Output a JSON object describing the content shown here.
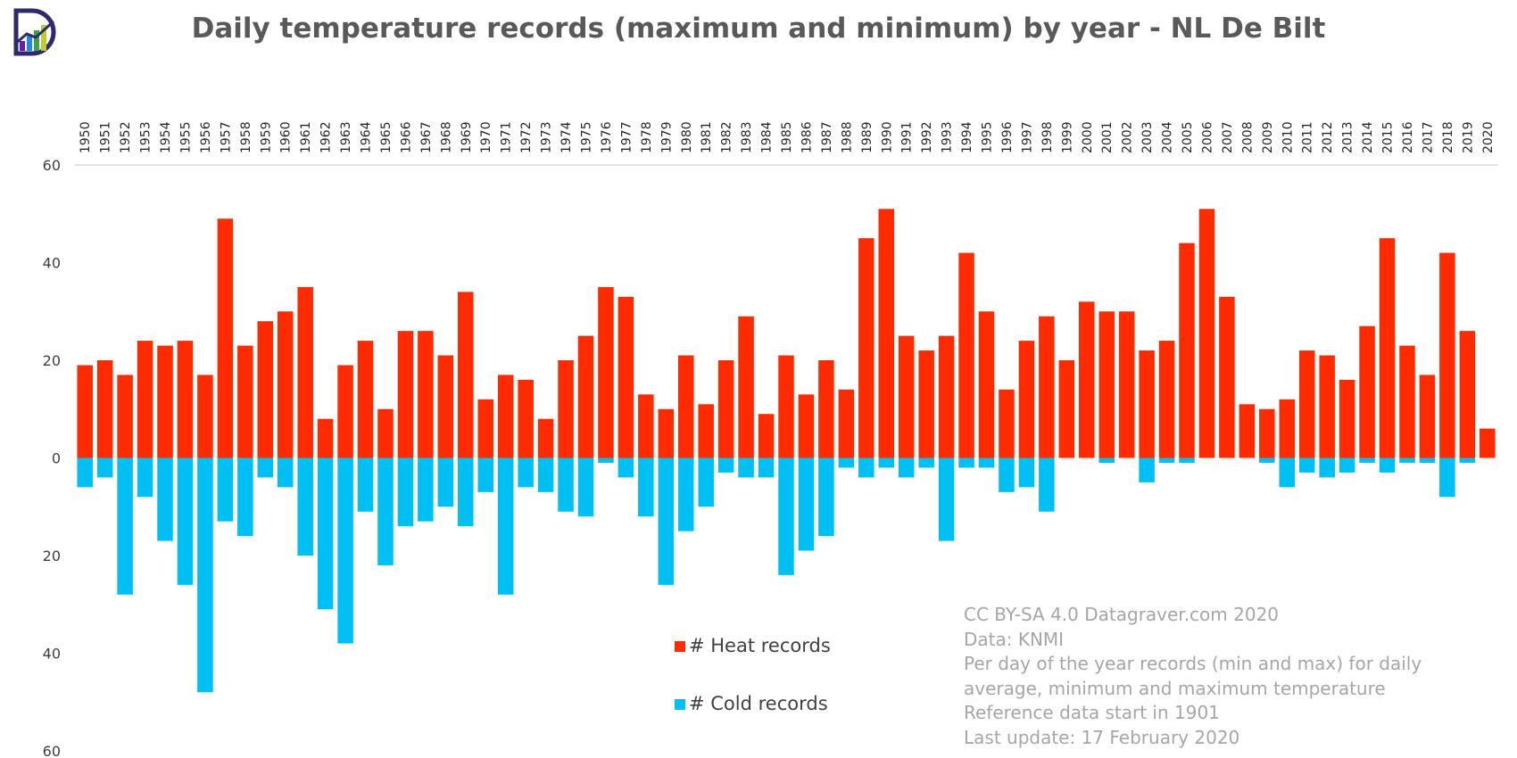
{
  "logo": {
    "icon": "datagraver-logo-icon"
  },
  "colors": {
    "heat": "#ff2b00",
    "cold": "#00bff2",
    "axis": "#d9d9d9",
    "title": "#595959",
    "note": "#a6a6a6"
  },
  "chart_data": {
    "type": "bar",
    "title": "Daily temperature records (maximum and minimum) by year - NL De Bilt",
    "xlabel": "",
    "ylabel": "",
    "x_axis_position": "top",
    "ylim": [
      -60,
      60
    ],
    "y_ticks": [
      60,
      40,
      20,
      0,
      -20,
      -40,
      -60
    ],
    "y_tick_labels": [
      "60",
      "40",
      "20",
      "0",
      "20",
      "40",
      "60"
    ],
    "grid": false,
    "legend_position": "bottom-center",
    "categories": [
      "1950",
      "1951",
      "1952",
      "1953",
      "1954",
      "1955",
      "1956",
      "1957",
      "1958",
      "1959",
      "1960",
      "1961",
      "1962",
      "1963",
      "1964",
      "1965",
      "1966",
      "1967",
      "1968",
      "1969",
      "1970",
      "1971",
      "1972",
      "1973",
      "1974",
      "1975",
      "1976",
      "1977",
      "1978",
      "1979",
      "1980",
      "1981",
      "1982",
      "1983",
      "1984",
      "1985",
      "1986",
      "1987",
      "1988",
      "1989",
      "1990",
      "1991",
      "1992",
      "1993",
      "1994",
      "1995",
      "1996",
      "1997",
      "1998",
      "1999",
      "2000",
      "2001",
      "2002",
      "2003",
      "2004",
      "2005",
      "2006",
      "2007",
      "2008",
      "2009",
      "2010",
      "2011",
      "2012",
      "2013",
      "2014",
      "2015",
      "2016",
      "2017",
      "2018",
      "2019",
      "2020"
    ],
    "series": [
      {
        "name": "# Heat records",
        "color": "#ff2b00",
        "values": [
          19,
          20,
          17,
          24,
          23,
          24,
          17,
          49,
          23,
          28,
          30,
          35,
          8,
          19,
          24,
          10,
          26,
          26,
          21,
          34,
          12,
          17,
          16,
          8,
          20,
          25,
          35,
          33,
          13,
          10,
          21,
          11,
          20,
          29,
          9,
          21,
          13,
          20,
          14,
          45,
          51,
          25,
          22,
          25,
          42,
          30,
          14,
          24,
          29,
          20,
          32,
          30,
          30,
          22,
          24,
          44,
          51,
          33,
          11,
          10,
          12,
          22,
          21,
          16,
          27,
          45,
          23,
          17,
          42,
          26,
          6
        ]
      },
      {
        "name": "# Cold records",
        "color": "#00bff2",
        "values": [
          -6,
          -4,
          -28,
          -8,
          -17,
          -26,
          -48,
          -13,
          -16,
          -4,
          -6,
          -20,
          -31,
          -38,
          -11,
          -22,
          -14,
          -13,
          -10,
          -14,
          -7,
          -28,
          -6,
          -7,
          -11,
          -12,
          -1,
          -4,
          -12,
          -26,
          -15,
          -10,
          -3,
          -4,
          -4,
          -24,
          -19,
          -16,
          -2,
          -4,
          -2,
          -4,
          -2,
          -17,
          -2,
          -2,
          -7,
          -6,
          -11,
          0,
          0,
          -1,
          0,
          -5,
          -1,
          -1,
          0,
          0,
          0,
          -1,
          -6,
          -3,
          -4,
          -3,
          -1,
          -3,
          -1,
          -1,
          -8,
          -1,
          0
        ]
      }
    ]
  },
  "notes": [
    "CC BY-SA 4.0 Datagraver.com 2020",
    "Data: KNMI",
    "Per day of the year records (min and max) for daily",
    "average, minimum and maximum temperature",
    "Reference data start in 1901",
    "Last update: 17 February 2020"
  ]
}
